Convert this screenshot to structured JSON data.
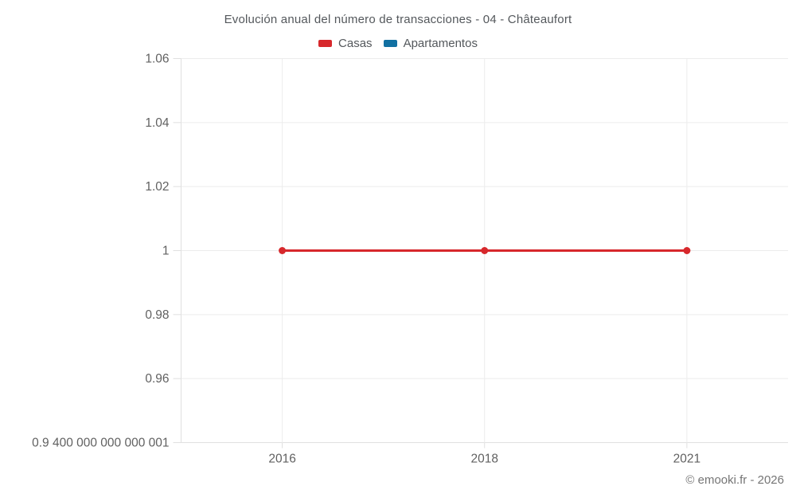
{
  "chart_data": {
    "type": "line",
    "title": "Evolución anual del número de transacciones - 04 - Châteaufort",
    "categories": [
      "2016",
      "2018",
      "2021"
    ],
    "series": [
      {
        "name": "Casas",
        "color": "#d7282c",
        "values": [
          1,
          1,
          1
        ]
      },
      {
        "name": "Apartamentos",
        "color": "#1170a2",
        "values": []
      }
    ],
    "ylim": [
      0.94,
      1.06
    ],
    "ytick_values": [
      0.94,
      0.96,
      0.98,
      1,
      1.02,
      1.04,
      1.06
    ],
    "ytick_labels": [
      "0.9 400 000 000 000 001",
      "0.96",
      "0.98",
      "1",
      "1.02",
      "1.04",
      "1.06"
    ],
    "xlabel": "",
    "ylabel": "",
    "grid": true,
    "legend_position": "top"
  },
  "footer": {
    "attribution": "© emooki.fr - 2026"
  }
}
